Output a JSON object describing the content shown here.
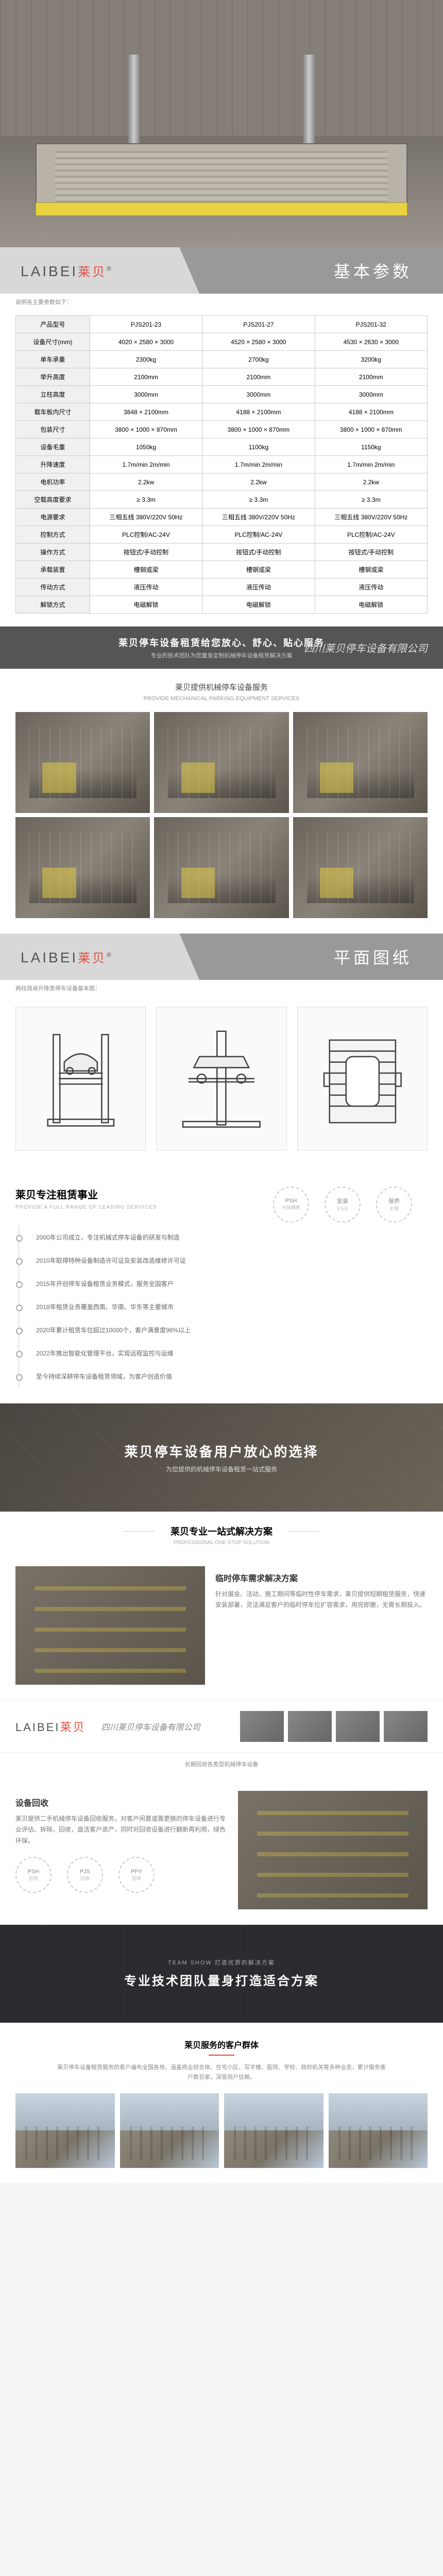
{
  "brand": {
    "latin": "LAIBEI",
    "zh": "莱贝"
  },
  "hero_alt": "两柱简易升降停车设备产品图",
  "sections": {
    "spec": {
      "title": "基本参数",
      "note": "说明各主要参数如下："
    },
    "drawing": {
      "title": "平面图纸",
      "note": "两柱简易升降类停车设备基本图："
    },
    "timeline": {
      "title": "莱贝专注租赁事业",
      "en": "PROVIDE A FULL RANGE OF LEASING SERVICES"
    },
    "choice": {
      "title": "莱贝停车设备用户放心的选择",
      "sub": "为您提供的机械停车设备租赁一站式服务"
    },
    "solution_header": {
      "title": "莱贝专业一站式解决方案",
      "en": "PROFESSIONAL ONE-STOP SOLUTION"
    },
    "team": {
      "en": "TEAM SHOW 打造优质的解决方案",
      "title": "专业技术团队量身打造适合方案"
    },
    "customers": {
      "title": "莱贝服务的客户群体",
      "desc": "莱贝停车设备租赁服务的客户遍布全国各地，涵盖商业综合体、住宅小区、写字楼、医院、学校、政府机关等多种业态，累计服务客户数百家，深受用户信赖。"
    }
  },
  "company_strip": {
    "title": "莱贝停车设备租赁给您放心、舒心、贴心服务",
    "sub": "专业的技术团队为您量身定制机械停车设备租赁解决方案",
    "script": "四川莱贝停车设备有限公司"
  },
  "service_block": {
    "title": "莱贝提供机械停车设备服务",
    "sub": "PROVIDE MECHANICAL PARKING EQUIPMENT SERVICES"
  },
  "spec_table": {
    "headers": [
      "产品型号",
      "PJS201-23",
      "PJS201-27",
      "PJS201-32"
    ],
    "rows": [
      [
        "设备尺寸(mm)",
        "4020 × 2580 × 3000",
        "4520 × 2580 × 3000",
        "4530 × 2630 × 3000"
      ],
      [
        "单车承重",
        "2300kg",
        "2700kg",
        "3200kg"
      ],
      [
        "举升高度",
        "2100mm",
        "2100mm",
        "2100mm"
      ],
      [
        "立柱高度",
        "3000mm",
        "3000mm",
        "3000mm"
      ],
      [
        "载车板内尺寸",
        "3848 × 2100mm",
        "4188 × 2100mm",
        "4188 × 2100mm"
      ],
      [
        "包装尺寸",
        "3800 × 1000 × 870mm",
        "3800 × 1000 × 870mm",
        "3800 × 1000 × 870mm"
      ],
      [
        "设备毛重",
        "1050kg",
        "1100kg",
        "1150kg"
      ],
      [
        "升降速度",
        "1.7m/min 2m/min",
        "1.7m/min 2m/min",
        "1.7m/min 2m/min"
      ],
      [
        "电机功率",
        "2.2kw",
        "2.2kw",
        "2.2kw"
      ],
      [
        "空载高度要求",
        "≥ 3.3m",
        "≥ 3.3m",
        "≥ 3.3m"
      ],
      [
        "电源要求",
        "三相五线 380V/220V 50Hz",
        "三相五线 380V/220V 50Hz",
        "三相五线 380V/220V 50Hz"
      ],
      [
        "控制方式",
        "PLC控制/AC-24V",
        "PLC控制/AC-24V",
        "PLC控制/AC-24V"
      ],
      [
        "操作方式",
        "按钮式/手动控制",
        "按钮式/手动控制",
        "按钮式/手动控制"
      ],
      [
        "承载装置",
        "槽钢或梁",
        "槽钢或梁",
        "槽钢或梁"
      ],
      [
        "传动方式",
        "液压传动",
        "液压传动",
        "液压传动"
      ],
      [
        "解锁方式",
        "电磁解锁",
        "电磁解锁",
        "电磁解锁"
      ]
    ]
  },
  "timeline_circles": [
    {
      "top": "PSH",
      "bottom": "升降横移"
    },
    {
      "top": "安装",
      "bottom": "3-5天"
    },
    {
      "top": "保养",
      "bottom": "定期"
    }
  ],
  "timeline_items": [
    "2000年公司成立，专注机械式停车设备的研发与制造",
    "2010年取得特种设备制造许可证及安装改造维修许可证",
    "2015年开创停车设备租赁业务模式，服务全国客户",
    "2018年租赁业务覆盖西南、华南、华东等主要城市",
    "2020年累计租赁车位超过10000个，客户满意度98%以上",
    "2022年推出智能化管理平台，实现远程监控与运维",
    "至今持续深耕停车设备租赁领域，为客户创造价值"
  ],
  "solutions": [
    {
      "title": "临时停车需求解决方案",
      "desc": "针对展会、活动、施工期间等临时性停车需求，莱贝提供短期租赁服务，快速安装部署，灵活满足客户的临时停车位扩容需求，用完即撤，无需长期投入。"
    },
    {
      "title": "设备回收",
      "desc": "莱贝提供二手机械停车设备回收服务，对客户闲置或需更换的停车设备进行专业评估、拆除、回收，盘活客户资产，同时对回收设备进行翻新再利用，绿色环保。"
    }
  ],
  "recycle_circles": [
    {
      "top": "PSH",
      "bottom": "回收"
    },
    {
      "top": "PJS",
      "bottom": "回收"
    },
    {
      "top": "PPY",
      "bottom": "回收"
    }
  ],
  "recycle_note": "长期回收各类型机械停车设备"
}
